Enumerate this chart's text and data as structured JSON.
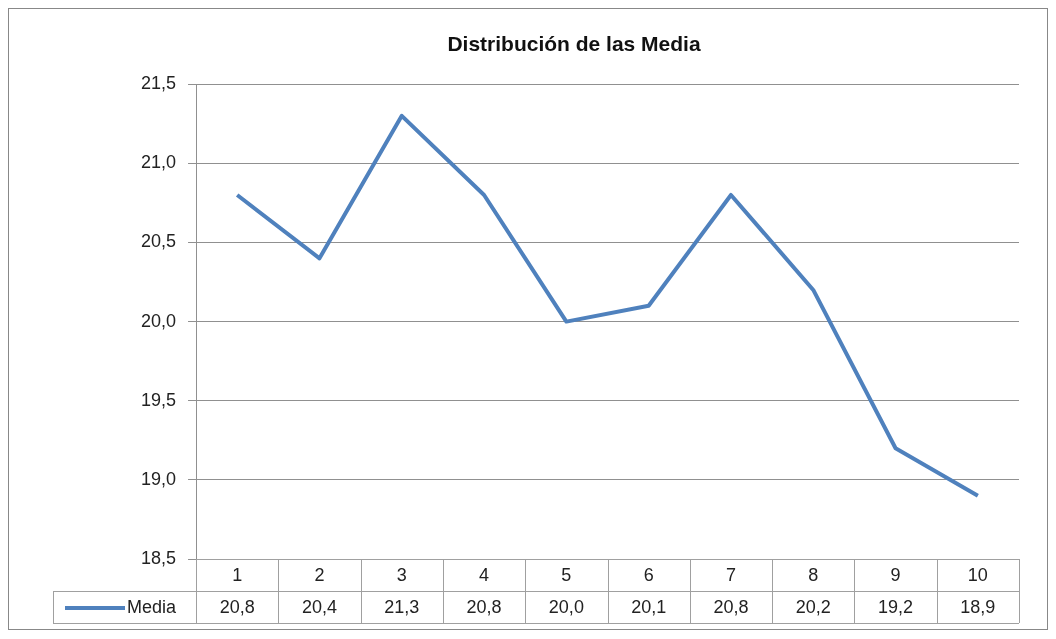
{
  "chart_data": {
    "type": "line",
    "title": "Distribución de las Media",
    "categories": [
      "1",
      "2",
      "3",
      "4",
      "5",
      "6",
      "7",
      "8",
      "9",
      "10"
    ],
    "series": [
      {
        "name": "Media",
        "color": "#4f81bd",
        "values": [
          20.8,
          20.4,
          21.3,
          20.8,
          20.0,
          20.1,
          20.8,
          20.2,
          19.2,
          18.9
        ],
        "value_labels": [
          "20,8",
          "20,4",
          "21,3",
          "20,8",
          "20,0",
          "20,1",
          "20,8",
          "20,2",
          "19,2",
          "18,9"
        ]
      }
    ],
    "ylim": [
      18.5,
      21.5
    ],
    "yticks": [
      {
        "value": 18.5,
        "label": "18,5"
      },
      {
        "value": 19,
        "label": "19,0"
      },
      {
        "value": 19.5,
        "label": "19,5"
      },
      {
        "value": 20,
        "label": "20,0"
      },
      {
        "value": 20.5,
        "label": "20,5"
      },
      {
        "value": 21,
        "label": "21,0"
      },
      {
        "value": 21.5,
        "label": "21,5"
      }
    ],
    "grid": "y",
    "legend": "bottom",
    "marker": "none",
    "line_style": "solid"
  }
}
